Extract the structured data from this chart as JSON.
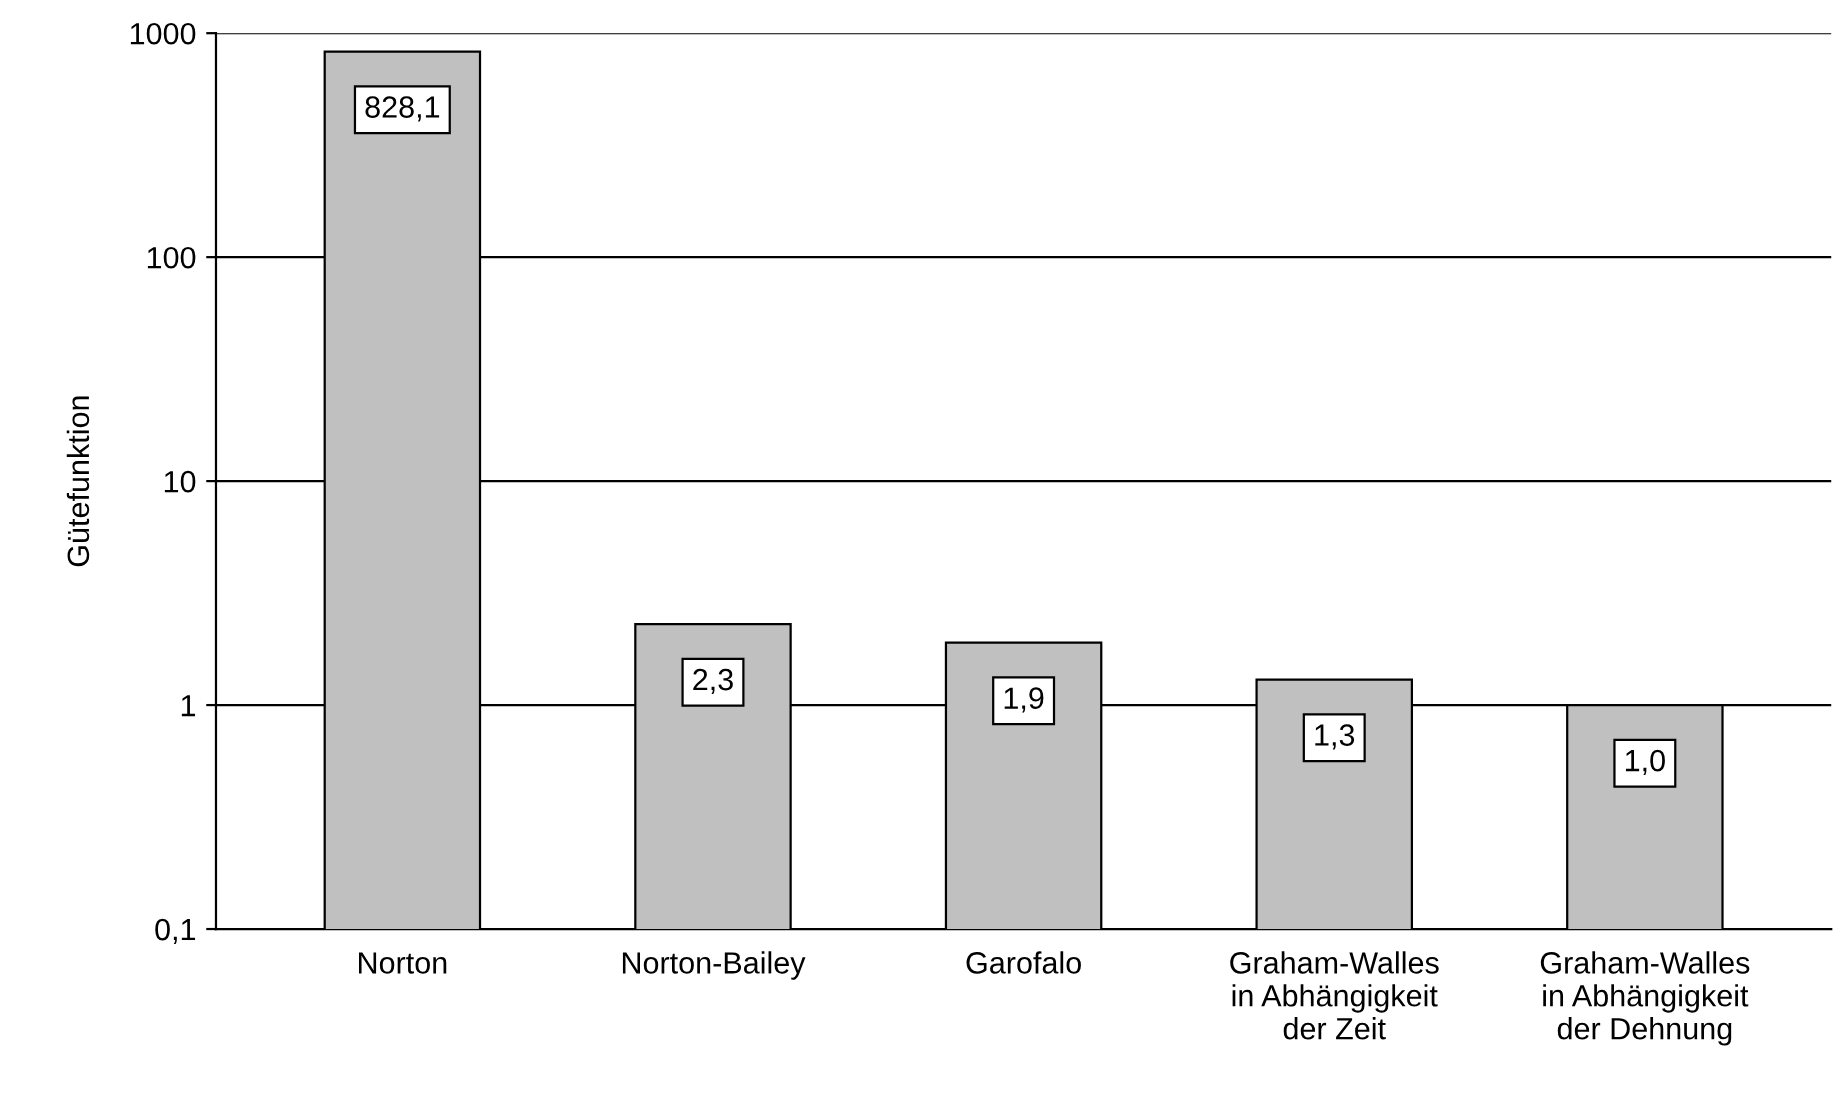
{
  "chart_data": {
    "type": "bar",
    "ylabel": "Gütefunktion",
    "categories": [
      "Norton",
      "Norton-Bailey",
      "Garofalo",
      "Graham-Walles\nin Abhängigkeit\nder Zeit",
      "Graham-Walles\nin Abhängigkeit\nder Dehnung"
    ],
    "values": [
      828.1,
      2.3,
      1.9,
      1.3,
      1.0
    ],
    "value_labels": [
      "828,1",
      "2,3",
      "1,9",
      "1,3",
      "1,0"
    ],
    "color": "#c0c0c0",
    "log": "y",
    "ylim": [
      0.1,
      1000
    ],
    "yticks": [
      {
        "value": 0.1,
        "label": "0,1"
      },
      1,
      10,
      100,
      1000
    ],
    "grid": "y"
  }
}
